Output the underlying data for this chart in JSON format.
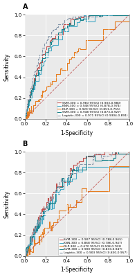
{
  "panel_A": {
    "curves": [
      {
        "label": "SVM-300 = 0.960 95%CI (0.903-0.980)",
        "color": "#c0504d",
        "lw": 0.8,
        "style": "solid",
        "params": [
          5.0,
          0.01,
          42
        ]
      },
      {
        "label": "KNN-300 = 0.948 95%CI (0.878-0.974)",
        "color": "#4bacc6",
        "lw": 0.8,
        "style": "solid",
        "params": [
          4.0,
          0.015,
          7
        ]
      },
      {
        "label": "DLP-300 = 0.920 95%CI (0.851-0.755)",
        "color": "#e67e22",
        "lw": 0.8,
        "style": "solid",
        "params": [
          1.5,
          0.02,
          13
        ]
      },
      {
        "label": "SVM-300 = 0.948 95%CI (0.873-0.927)",
        "color": "#17818a",
        "lw": 0.8,
        "style": "solid",
        "params": [
          4.5,
          0.012,
          21
        ]
      },
      {
        "label": "Logistic-300 = 0.971 95%CI (0.9304-0.891)",
        "color": "#8496a9",
        "lw": 0.8,
        "style": "dashed",
        "params": [
          6.0,
          0.008,
          33
        ]
      }
    ]
  },
  "panel_B": {
    "curves": [
      {
        "label": "SVM-300 = 0.907 95%CI (0.788-0.965)",
        "color": "#c0504d",
        "lw": 0.8,
        "style": "solid",
        "params": [
          3.0,
          0.025,
          52
        ]
      },
      {
        "label": "KNN-300 = 0.868 95%CI (0.786-0.947)",
        "color": "#4bacc6",
        "lw": 0.8,
        "style": "solid",
        "params": [
          2.5,
          0.03,
          63
        ]
      },
      {
        "label": "DLP-300 = 0.670 95%CI (0.508-0.763)",
        "color": "#e67e22",
        "lw": 0.8,
        "style": "solid",
        "params": [
          1.2,
          0.03,
          74
        ]
      },
      {
        "label": "SVM-300 = 0.900 95%CI (0.833-0.947)",
        "color": "#17818a",
        "lw": 0.8,
        "style": "solid",
        "params": [
          2.8,
          0.025,
          85
        ]
      },
      {
        "label": "Logistic-300 = 0.903 95%CI (0.830-0.957)",
        "color": "#8496a9",
        "lw": 0.8,
        "style": "dashed",
        "params": [
          2.9,
          0.02,
          96
        ]
      }
    ]
  },
  "bg_color": "#eaeaea",
  "grid_color": "#ffffff",
  "diag_color": "#c0504d",
  "xlabel": "1-Specificity",
  "ylabel": "Sensitivity",
  "legend_fontsize": 3.2,
  "tick_fontsize": 5,
  "label_fontsize": 5.5,
  "tick_labels": [
    "0.0",
    "0.2",
    "0.4",
    "0.6",
    "0.8",
    "1.0"
  ]
}
